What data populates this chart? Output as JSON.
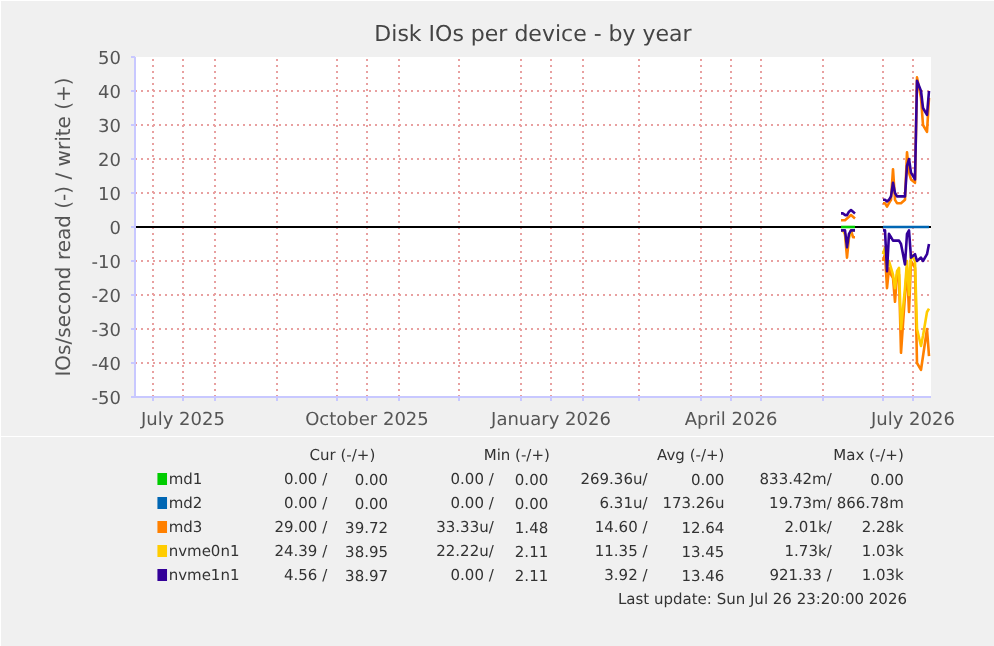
{
  "chart_data": {
    "type": "line",
    "title": "Disk IOs per device - by year",
    "ylabel": "IOs/second read (-) / write (+)",
    "x": [
      "2026-06-10",
      "2026-06-11",
      "2026-06-12",
      "2026-06-13",
      "2026-06-14",
      "2026-06-15",
      "2026-06-16",
      "2026-06-17",
      "2026-06-24",
      "2026-07-01",
      "2026-07-02",
      "2026-07-03",
      "2026-07-04",
      "2026-07-05",
      "2026-07-06",
      "2026-07-07",
      "2026-07-08",
      "2026-07-09",
      "2026-07-10",
      "2026-07-12",
      "2026-07-13",
      "2026-07-14",
      "2026-07-15",
      "2026-07-17",
      "2026-07-18",
      "2026-07-20",
      "2026-07-21",
      "2026-07-23",
      "2026-07-24"
    ],
    "series": [
      {
        "name": "md1",
        "color": "#00cc00",
        "values": [
          0,
          0,
          0,
          0,
          0,
          0,
          0,
          0,
          null,
          null,
          null,
          null,
          null,
          null,
          null,
          null,
          null,
          null,
          null,
          null,
          null,
          null,
          null,
          null,
          null,
          null,
          null,
          null,
          null
        ]
      },
      {
        "name": "md2",
        "color": "#0066b3",
        "values": [
          null,
          null,
          null,
          null,
          null,
          null,
          null,
          null,
          null,
          0,
          0,
          0,
          0,
          0,
          0,
          0,
          0,
          0,
          0,
          0,
          0,
          0,
          0,
          0,
          0,
          0,
          0,
          0,
          0
        ]
      },
      {
        "color": "#ff8000",
        "values": [
          -1,
          -1,
          -2,
          -9,
          -3,
          -1,
          -3,
          -3,
          null,
          -10,
          -8,
          -18,
          -12,
          -14,
          -15,
          -22,
          -14,
          -14,
          -37,
          -20,
          -12,
          -25,
          -10,
          -12,
          -40,
          -42,
          -38,
          -30,
          -38
        ]
      },
      {
        "name": "md3",
        "color": "#ff8000",
        "values": [
          2,
          2,
          2,
          2.5,
          3,
          3.5,
          3,
          2.5,
          null,
          7,
          7,
          6,
          7,
          8,
          17,
          8,
          7,
          7,
          7,
          8,
          22,
          16,
          14,
          13,
          44,
          38,
          30,
          28,
          38
        ]
      },
      {
        "name": "nvme0n1",
        "color": "#ffcc00",
        "values": [
          -1,
          -1,
          -2,
          -6,
          -3,
          -1,
          -1,
          -1,
          null,
          -8,
          -6,
          -12,
          -10,
          -12,
          -14,
          -18,
          -13,
          -12,
          -30,
          -18,
          -10,
          -20,
          -8,
          -10,
          -30,
          -35,
          -32,
          -25,
          -24
        ]
      },
      {
        "color": "#330099",
        "values": [
          -1,
          -1,
          -1,
          -6,
          -2,
          -1,
          -1,
          -1,
          null,
          -1,
          -1,
          -13,
          -2,
          -3,
          -4,
          -4,
          -4,
          -4,
          -5,
          -11,
          -2,
          -1,
          -9,
          -8,
          -10,
          -9,
          -10,
          -8,
          -5
        ]
      },
      {
        "name": "nvme1n1",
        "color": "#330099",
        "values": [
          4,
          4,
          3.5,
          3.5,
          4.5,
          5,
          4.5,
          4,
          null,
          8,
          8,
          7.5,
          8,
          9,
          13,
          10,
          9,
          9,
          9,
          9,
          18,
          20,
          16,
          14,
          43,
          40,
          35,
          33,
          40
        ]
      }
    ],
    "xlim": [
      "2025-06-22",
      "2026-07-25"
    ],
    "xticks": [
      {
        "value": "2025-07-01",
        "label": null
      },
      {
        "value": "2025-07-16",
        "label": "July 2025"
      },
      {
        "value": "2025-08-01",
        "label": null
      },
      {
        "value": "2025-09-01",
        "label": null
      },
      {
        "value": "2025-10-01",
        "label": null
      },
      {
        "value": "2025-10-16",
        "label": "October 2025"
      },
      {
        "value": "2025-11-01",
        "label": null
      },
      {
        "value": "2025-12-01",
        "label": null
      },
      {
        "value": "2026-01-01",
        "label": null
      },
      {
        "value": "2026-01-16",
        "label": "January 2026"
      },
      {
        "value": "2026-02-01",
        "label": null
      },
      {
        "value": "2026-03-01",
        "label": null
      },
      {
        "value": "2026-04-01",
        "label": null
      },
      {
        "value": "2026-04-16",
        "label": "April 2026"
      },
      {
        "value": "2026-05-01",
        "label": null
      },
      {
        "value": "2026-06-01",
        "label": null
      },
      {
        "value": "2026-07-01",
        "label": null
      },
      {
        "value": "2026-07-16",
        "label": "July 2026"
      }
    ],
    "ylim": [
      -50,
      50
    ],
    "yticks": [
      -50,
      -40,
      -30,
      -20,
      -10,
      0,
      10,
      20,
      30,
      40,
      50
    ],
    "grid": true,
    "legend": "bottom",
    "ref_lines": [
      {
        "axis": "y",
        "value": 0,
        "color": "#000000"
      }
    ],
    "annotations": [
      "Cur (-/+)",
      "Min (-/+)",
      "Avg (-/+)",
      "Max (-/+)",
      "0.00 /",
      "0.00",
      "0.00 /",
      "0.00",
      "269.36u/",
      "0.00",
      "833.42m/",
      "0.00",
      "0.00 /",
      "0.00",
      "0.00 /",
      "0.00",
      "6.31u/",
      "173.26u",
      "19.73m/",
      "866.78m",
      "29.00 /",
      "39.72",
      "33.33u/",
      "1.48",
      "14.60 /",
      "12.64",
      "2.01k/",
      "2.28k",
      "24.39 /",
      "38.95",
      "22.22u/",
      "2.11",
      "11.35 /",
      "13.45",
      "1.73k/",
      "1.03k",
      "4.56 /",
      "38.97",
      "0.00 /",
      "2.11",
      "3.92 /",
      "13.46",
      "921.33 /",
      "1.03k",
      "Last update: Sun Jul 26 23:20:00 2026"
    ]
  }
}
